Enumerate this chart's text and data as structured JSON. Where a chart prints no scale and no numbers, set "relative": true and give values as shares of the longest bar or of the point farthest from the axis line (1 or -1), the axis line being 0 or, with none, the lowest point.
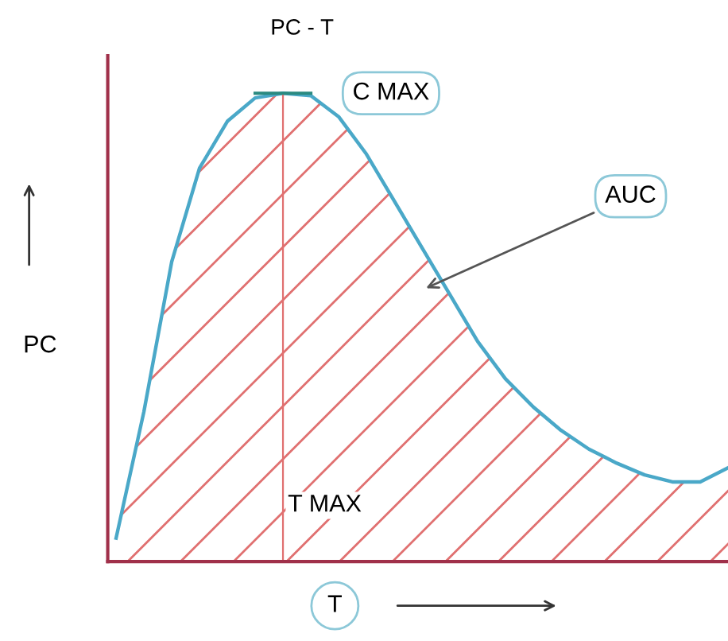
{
  "chart_data": {
    "type": "area",
    "title": "PC - T",
    "xlabel": "T",
    "ylabel": "PC",
    "relative": true,
    "categories": [
      null,
      null,
      null,
      null,
      null,
      null,
      null,
      null,
      null,
      null,
      null,
      null,
      null,
      null,
      null,
      null,
      null,
      null,
      null,
      null,
      null,
      null,
      null
    ],
    "series": [
      {
        "color": "#4aa8c8",
        "values": [
          0.05,
          0.32,
          0.64,
          0.84,
          0.94,
          0.99,
          1.0,
          0.995,
          0.95,
          0.87,
          0.77,
          0.67,
          0.57,
          0.47,
          0.39,
          0.33,
          0.28,
          0.24,
          0.21,
          0.185,
          0.17,
          0.17,
          0.2
        ]
      }
    ],
    "annotations": [
      "C MAX",
      "AUC",
      "T MAX"
    ],
    "legend": false,
    "tick_labels": false
  }
}
